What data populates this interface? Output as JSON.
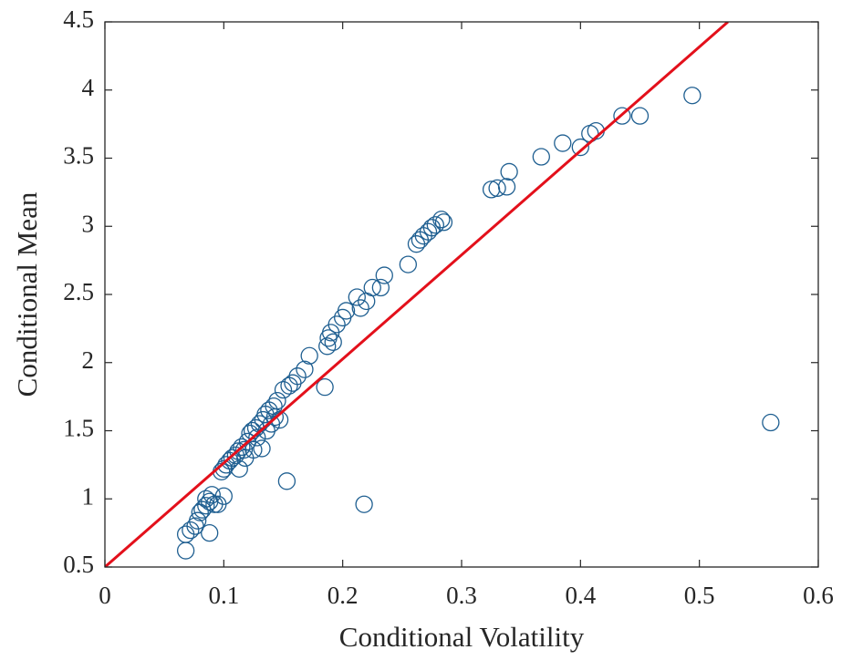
{
  "chart_data": {
    "type": "scatter",
    "xlabel": "Conditional Volatility",
    "ylabel": "Conditional Mean",
    "xlim": [
      0,
      0.6
    ],
    "ylim": [
      0.5,
      4.5
    ],
    "xticks": [
      0,
      0.1,
      0.2,
      0.3,
      0.4,
      0.5,
      0.6
    ],
    "yticks": [
      0.5,
      1,
      1.5,
      2,
      2.5,
      3,
      3.5,
      4,
      4.5
    ],
    "series": [
      {
        "type": "scatter",
        "color": "#1f5f91",
        "x": [
          0.068,
          0.068,
          0.072,
          0.076,
          0.078,
          0.08,
          0.082,
          0.085,
          0.085,
          0.088,
          0.088,
          0.09,
          0.092,
          0.095,
          0.1,
          0.098,
          0.1,
          0.102,
          0.105,
          0.107,
          0.11,
          0.112,
          0.113,
          0.115,
          0.117,
          0.118,
          0.12,
          0.122,
          0.124,
          0.125,
          0.127,
          0.128,
          0.13,
          0.132,
          0.133,
          0.135,
          0.136,
          0.138,
          0.14,
          0.142,
          0.143,
          0.145,
          0.147,
          0.15,
          0.153,
          0.155,
          0.158,
          0.162,
          0.168,
          0.172,
          0.185,
          0.187,
          0.188,
          0.19,
          0.192,
          0.195,
          0.2,
          0.203,
          0.212,
          0.215,
          0.218,
          0.22,
          0.225,
          0.232,
          0.235,
          0.255,
          0.262,
          0.265,
          0.268,
          0.272,
          0.275,
          0.278,
          0.283,
          0.285,
          0.325,
          0.33,
          0.338,
          0.34,
          0.367,
          0.385,
          0.4,
          0.408,
          0.413,
          0.435,
          0.45,
          0.494,
          0.56
        ],
        "values": [
          0.62,
          0.74,
          0.77,
          0.8,
          0.84,
          0.9,
          0.92,
          0.95,
          1.0,
          0.75,
          0.98,
          1.03,
          0.96,
          0.96,
          1.02,
          1.2,
          1.22,
          1.25,
          1.28,
          1.3,
          1.32,
          1.35,
          1.22,
          1.38,
          1.36,
          1.3,
          1.42,
          1.48,
          1.5,
          1.36,
          1.52,
          1.45,
          1.55,
          1.37,
          1.58,
          1.62,
          1.5,
          1.65,
          1.55,
          1.68,
          1.6,
          1.72,
          1.58,
          1.8,
          1.13,
          1.83,
          1.85,
          1.9,
          1.95,
          2.05,
          1.82,
          2.12,
          2.18,
          2.22,
          2.15,
          2.28,
          2.33,
          2.38,
          2.48,
          2.4,
          0.96,
          2.45,
          2.55,
          2.55,
          2.64,
          2.72,
          2.87,
          2.9,
          2.93,
          2.96,
          2.99,
          3.01,
          3.05,
          3.03,
          3.27,
          3.28,
          3.29,
          3.4,
          3.51,
          3.61,
          3.58,
          3.68,
          3.7,
          3.81,
          3.81,
          3.96,
          1.56
        ]
      },
      {
        "type": "line",
        "color": "#e3101b",
        "x": [
          0,
          0.524
        ],
        "values": [
          0.5,
          4.5
        ]
      }
    ]
  }
}
